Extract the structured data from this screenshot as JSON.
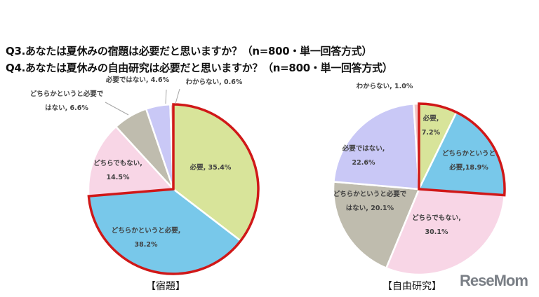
{
  "titles": [
    "Q3.あなたは夏休みの宿題は必要だと思いますか？（n=800・単一回答方式）",
    "Q4.あなたは夏休みの自由研究は必要だと思いますか？（n=800・単一回答方式）"
  ],
  "logo": "ReseMom",
  "chart_data": [
    {
      "type": "pie",
      "title": "【宿題】",
      "categories": [
        "必要",
        "どちらかというと必要",
        "どちらでもない",
        "どちらかというと必要ではない",
        "必要ではない",
        "わからない"
      ],
      "values": [
        35.4,
        38.2,
        14.5,
        6.6,
        4.6,
        0.6
      ],
      "labels": [
        "必要, 35.4%",
        "どちらかというと必要,\n38.2%",
        "どちらでもない,\n14.5%",
        "どちらかというと必要で\nはない, 6.6%",
        "必要ではない, 4.6%",
        "わからない, 0.6%"
      ],
      "highlighted": [
        "必要",
        "どちらかというと必要"
      ]
    },
    {
      "type": "pie",
      "title": "【自由研究】",
      "categories": [
        "必要",
        "どちらかというと必要",
        "どちらでもない",
        "どちらかというと必要ではない",
        "必要ではない",
        "わからない"
      ],
      "values": [
        7.2,
        18.9,
        30.1,
        20.1,
        22.6,
        1.0
      ],
      "labels": [
        "必要,\n7.2%",
        "どちらかというと\n必要,18.9%",
        "どちらでもない,\n30.1%",
        "どちらかというと必要で\nはない, 20.1%",
        "必要ではない,\n22.6%",
        "わからない, 1.0%"
      ],
      "highlighted": [
        "必要",
        "どちらかというと必要"
      ]
    }
  ],
  "colors": [
    "#d8e49a",
    "#78c8ea",
    "#f8d6e6",
    "#bfbcae",
    "#c9c8f6",
    "#f3c6c6"
  ],
  "highlight_color": "#d01818"
}
